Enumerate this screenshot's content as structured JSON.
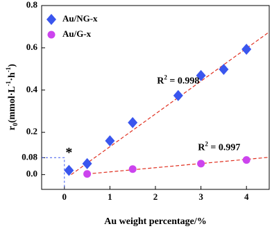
{
  "chart_data": {
    "type": "scatter",
    "xlabel": "Au weight  percentage/%",
    "ylabel": [
      {
        "text": "r",
        "shift": "none"
      },
      {
        "text": "0",
        "shift": "sub"
      },
      {
        "text": "(mmol·L",
        "shift": "none"
      },
      {
        "text": "-1",
        "shift": "sup"
      },
      {
        "text": "·h",
        "shift": "none"
      },
      {
        "text": "-1",
        "shift": "sup"
      },
      {
        "text": ")",
        "shift": "none"
      }
    ],
    "xlim": [
      -0.5,
      4.5
    ],
    "ylim": [
      -0.07,
      0.8
    ],
    "xticks": [
      0,
      1,
      2,
      3,
      4
    ],
    "yticks": [
      {
        "value": 0,
        "label": "0.0"
      },
      0.08,
      0.2,
      0.4,
      0.6,
      0.8
    ],
    "legend": "top-left",
    "series": [
      {
        "name": "Au/NG-x",
        "color": "#3a56ee",
        "marker": "diamond",
        "x": [
          0.1,
          0.5,
          1,
          1.5,
          2.5,
          3,
          3.5,
          4
        ],
        "values": [
          0.02,
          0.052,
          0.16,
          0.246,
          0.374,
          0.469,
          0.498,
          0.593
        ],
        "fit": {
          "x": [
            0.15,
            4.5
          ],
          "y": [
            0,
            0.675
          ]
        },
        "r2": {
          "base": "R",
          "sup": "2",
          "rest": " = 0.998",
          "x": 2.5,
          "y": 0.44
        }
      },
      {
        "name": "Au/G-x",
        "color": "#cc44ee",
        "marker": "circle",
        "x": [
          0.5,
          1.5,
          3,
          4
        ],
        "values": [
          0.003,
          0.026,
          0.052,
          0.069
        ],
        "fit": {
          "x": [
            0.5,
            4.5
          ],
          "y": [
            0.003,
            0.082
          ]
        },
        "r2": {
          "base": "R",
          "sup": "2",
          "rest": " = 0.997",
          "x": 3.4,
          "y": 0.125
        }
      }
    ],
    "fit_color": "#e03020",
    "marker_note": {
      "text": "*",
      "x": 0.1,
      "y": 0.1
    },
    "guide": {
      "x": 0,
      "y": 0.08,
      "color": "#3a56ee"
    }
  }
}
